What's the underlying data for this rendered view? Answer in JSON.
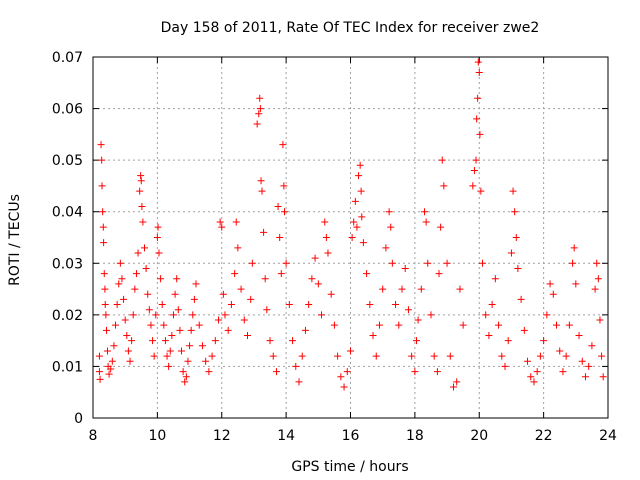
{
  "chart_data": {
    "type": "scatter",
    "title": "Day 158 of 2011, Rate Of TEC Index for receiver zwe2",
    "xlabel": "GPS time / hours",
    "ylabel": "ROTI / TECUs",
    "xlim": [
      8,
      24
    ],
    "ylim": [
      0,
      0.07
    ],
    "x_ticks": [
      8,
      10,
      12,
      14,
      16,
      18,
      20,
      22,
      24
    ],
    "y_ticks": [
      0,
      0.01,
      0.02,
      0.03,
      0.04,
      0.05,
      0.06,
      0.07
    ],
    "x_tick_labels": [
      "8",
      "10",
      "12",
      "14",
      "16",
      "18",
      "20",
      "22",
      "24"
    ],
    "y_tick_labels": [
      "0",
      "0.01",
      "0.02",
      "0.03",
      "0.04",
      "0.05",
      "0.06",
      "0.07"
    ],
    "grid": true,
    "legend": "none",
    "marker": "plus",
    "color": "#ff0000",
    "series": [
      {
        "points": [
          [
            8.2,
            0.009
          ],
          [
            8.2,
            0.012
          ],
          [
            8.22,
            0.0075
          ],
          [
            8.25,
            0.053
          ],
          [
            8.27,
            0.05
          ],
          [
            8.28,
            0.045
          ],
          [
            8.3,
            0.04
          ],
          [
            8.32,
            0.037
          ],
          [
            8.33,
            0.034
          ],
          [
            8.35,
            0.028
          ],
          [
            8.37,
            0.025
          ],
          [
            8.38,
            0.022
          ],
          [
            8.4,
            0.02
          ],
          [
            8.42,
            0.017
          ],
          [
            8.45,
            0.013
          ],
          [
            8.47,
            0.01
          ],
          [
            8.5,
            0.0085
          ],
          [
            8.55,
            0.0095
          ],
          [
            8.6,
            0.011
          ],
          [
            8.65,
            0.014
          ],
          [
            8.7,
            0.018
          ],
          [
            8.75,
            0.022
          ],
          [
            8.8,
            0.026
          ],
          [
            8.85,
            0.03
          ],
          [
            8.9,
            0.027
          ],
          [
            8.95,
            0.023
          ],
          [
            9.0,
            0.019
          ],
          [
            9.05,
            0.016
          ],
          [
            9.1,
            0.013
          ],
          [
            9.15,
            0.011
          ],
          [
            9.2,
            0.015
          ],
          [
            9.25,
            0.02
          ],
          [
            9.3,
            0.025
          ],
          [
            9.35,
            0.028
          ],
          [
            9.4,
            0.032
          ],
          [
            9.45,
            0.044
          ],
          [
            9.48,
            0.047
          ],
          [
            9.5,
            0.046
          ],
          [
            9.52,
            0.041
          ],
          [
            9.55,
            0.038
          ],
          [
            9.6,
            0.033
          ],
          [
            9.65,
            0.029
          ],
          [
            9.7,
            0.024
          ],
          [
            9.75,
            0.021
          ],
          [
            9.8,
            0.018
          ],
          [
            9.85,
            0.015
          ],
          [
            9.9,
            0.012
          ],
          [
            9.95,
            0.02
          ],
          [
            10.0,
            0.035
          ],
          [
            10.02,
            0.037
          ],
          [
            10.05,
            0.032
          ],
          [
            10.1,
            0.027
          ],
          [
            10.15,
            0.022
          ],
          [
            10.2,
            0.018
          ],
          [
            10.25,
            0.015
          ],
          [
            10.3,
            0.012
          ],
          [
            10.35,
            0.01
          ],
          [
            10.4,
            0.013
          ],
          [
            10.45,
            0.016
          ],
          [
            10.5,
            0.02
          ],
          [
            10.55,
            0.024
          ],
          [
            10.6,
            0.027
          ],
          [
            10.65,
            0.021
          ],
          [
            10.7,
            0.017
          ],
          [
            10.75,
            0.013
          ],
          [
            10.8,
            0.009
          ],
          [
            10.85,
            0.007
          ],
          [
            10.9,
            0.008
          ],
          [
            10.95,
            0.011
          ],
          [
            11.0,
            0.014
          ],
          [
            11.05,
            0.017
          ],
          [
            11.1,
            0.02
          ],
          [
            11.15,
            0.023
          ],
          [
            11.2,
            0.026
          ],
          [
            11.3,
            0.018
          ],
          [
            11.4,
            0.014
          ],
          [
            11.5,
            0.011
          ],
          [
            11.6,
            0.009
          ],
          [
            11.7,
            0.012
          ],
          [
            11.8,
            0.015
          ],
          [
            11.9,
            0.019
          ],
          [
            11.95,
            0.038
          ],
          [
            12.0,
            0.037
          ],
          [
            12.05,
            0.024
          ],
          [
            12.1,
            0.02
          ],
          [
            12.2,
            0.017
          ],
          [
            12.3,
            0.022
          ],
          [
            12.4,
            0.028
          ],
          [
            12.45,
            0.038
          ],
          [
            12.5,
            0.033
          ],
          [
            12.6,
            0.025
          ],
          [
            12.7,
            0.019
          ],
          [
            12.8,
            0.016
          ],
          [
            12.9,
            0.023
          ],
          [
            12.95,
            0.03
          ],
          [
            13.1,
            0.057
          ],
          [
            13.15,
            0.059
          ],
          [
            13.18,
            0.062
          ],
          [
            13.2,
            0.06
          ],
          [
            13.22,
            0.046
          ],
          [
            13.25,
            0.044
          ],
          [
            13.3,
            0.036
          ],
          [
            13.35,
            0.027
          ],
          [
            13.4,
            0.021
          ],
          [
            13.5,
            0.015
          ],
          [
            13.6,
            0.012
          ],
          [
            13.7,
            0.009
          ],
          [
            13.75,
            0.041
          ],
          [
            13.8,
            0.035
          ],
          [
            13.85,
            0.028
          ],
          [
            13.9,
            0.053
          ],
          [
            13.93,
            0.045
          ],
          [
            13.95,
            0.04
          ],
          [
            14.0,
            0.03
          ],
          [
            14.1,
            0.022
          ],
          [
            14.2,
            0.015
          ],
          [
            14.3,
            0.01
          ],
          [
            14.4,
            0.007
          ],
          [
            14.5,
            0.012
          ],
          [
            14.6,
            0.017
          ],
          [
            14.7,
            0.022
          ],
          [
            14.8,
            0.027
          ],
          [
            14.9,
            0.031
          ],
          [
            15.0,
            0.026
          ],
          [
            15.1,
            0.02
          ],
          [
            15.2,
            0.038
          ],
          [
            15.25,
            0.035
          ],
          [
            15.3,
            0.032
          ],
          [
            15.4,
            0.024
          ],
          [
            15.5,
            0.018
          ],
          [
            15.6,
            0.012
          ],
          [
            15.7,
            0.008
          ],
          [
            15.8,
            0.006
          ],
          [
            15.9,
            0.009
          ],
          [
            16.0,
            0.013
          ],
          [
            16.05,
            0.035
          ],
          [
            16.1,
            0.038
          ],
          [
            16.15,
            0.042
          ],
          [
            16.2,
            0.037
          ],
          [
            16.25,
            0.047
          ],
          [
            16.3,
            0.049
          ],
          [
            16.33,
            0.044
          ],
          [
            16.35,
            0.039
          ],
          [
            16.4,
            0.034
          ],
          [
            16.5,
            0.028
          ],
          [
            16.6,
            0.022
          ],
          [
            16.7,
            0.016
          ],
          [
            16.8,
            0.012
          ],
          [
            16.9,
            0.018
          ],
          [
            17.0,
            0.025
          ],
          [
            17.1,
            0.033
          ],
          [
            17.2,
            0.04
          ],
          [
            17.25,
            0.037
          ],
          [
            17.3,
            0.03
          ],
          [
            17.4,
            0.022
          ],
          [
            17.5,
            0.018
          ],
          [
            17.6,
            0.025
          ],
          [
            17.7,
            0.029
          ],
          [
            17.8,
            0.021
          ],
          [
            17.9,
            0.012
          ],
          [
            18.0,
            0.009
          ],
          [
            18.05,
            0.015
          ],
          [
            18.1,
            0.019
          ],
          [
            18.2,
            0.025
          ],
          [
            18.3,
            0.04
          ],
          [
            18.35,
            0.038
          ],
          [
            18.4,
            0.03
          ],
          [
            18.5,
            0.02
          ],
          [
            18.6,
            0.012
          ],
          [
            18.7,
            0.009
          ],
          [
            18.75,
            0.028
          ],
          [
            18.8,
            0.037
          ],
          [
            18.85,
            0.05
          ],
          [
            18.9,
            0.045
          ],
          [
            19.0,
            0.03
          ],
          [
            19.1,
            0.012
          ],
          [
            19.2,
            0.006
          ],
          [
            19.3,
            0.007
          ],
          [
            19.4,
            0.025
          ],
          [
            19.5,
            0.018
          ],
          [
            19.8,
            0.045
          ],
          [
            19.85,
            0.048
          ],
          [
            19.9,
            0.05
          ],
          [
            19.92,
            0.058
          ],
          [
            19.95,
            0.062
          ],
          [
            19.97,
            0.069
          ],
          [
            20.0,
            0.067
          ],
          [
            20.02,
            0.055
          ],
          [
            20.05,
            0.044
          ],
          [
            20.1,
            0.03
          ],
          [
            20.2,
            0.02
          ],
          [
            20.3,
            0.016
          ],
          [
            20.4,
            0.022
          ],
          [
            20.5,
            0.027
          ],
          [
            20.6,
            0.018
          ],
          [
            20.7,
            0.012
          ],
          [
            20.8,
            0.01
          ],
          [
            20.9,
            0.015
          ],
          [
            21.0,
            0.032
          ],
          [
            21.05,
            0.044
          ],
          [
            21.1,
            0.04
          ],
          [
            21.15,
            0.035
          ],
          [
            21.2,
            0.029
          ],
          [
            21.3,
            0.023
          ],
          [
            21.4,
            0.017
          ],
          [
            21.5,
            0.011
          ],
          [
            21.6,
            0.008
          ],
          [
            21.7,
            0.007
          ],
          [
            21.8,
            0.009
          ],
          [
            21.9,
            0.012
          ],
          [
            22.0,
            0.015
          ],
          [
            22.1,
            0.02
          ],
          [
            22.2,
            0.026
          ],
          [
            22.3,
            0.024
          ],
          [
            22.4,
            0.018
          ],
          [
            22.5,
            0.013
          ],
          [
            22.6,
            0.009
          ],
          [
            22.7,
            0.012
          ],
          [
            22.8,
            0.018
          ],
          [
            22.9,
            0.03
          ],
          [
            22.95,
            0.033
          ],
          [
            23.0,
            0.026
          ],
          [
            23.1,
            0.016
          ],
          [
            23.2,
            0.011
          ],
          [
            23.3,
            0.008
          ],
          [
            23.4,
            0.01
          ],
          [
            23.5,
            0.014
          ],
          [
            23.6,
            0.025
          ],
          [
            23.65,
            0.03
          ],
          [
            23.7,
            0.027
          ],
          [
            23.75,
            0.019
          ],
          [
            23.8,
            0.012
          ],
          [
            23.85,
            0.008
          ]
        ]
      }
    ]
  }
}
